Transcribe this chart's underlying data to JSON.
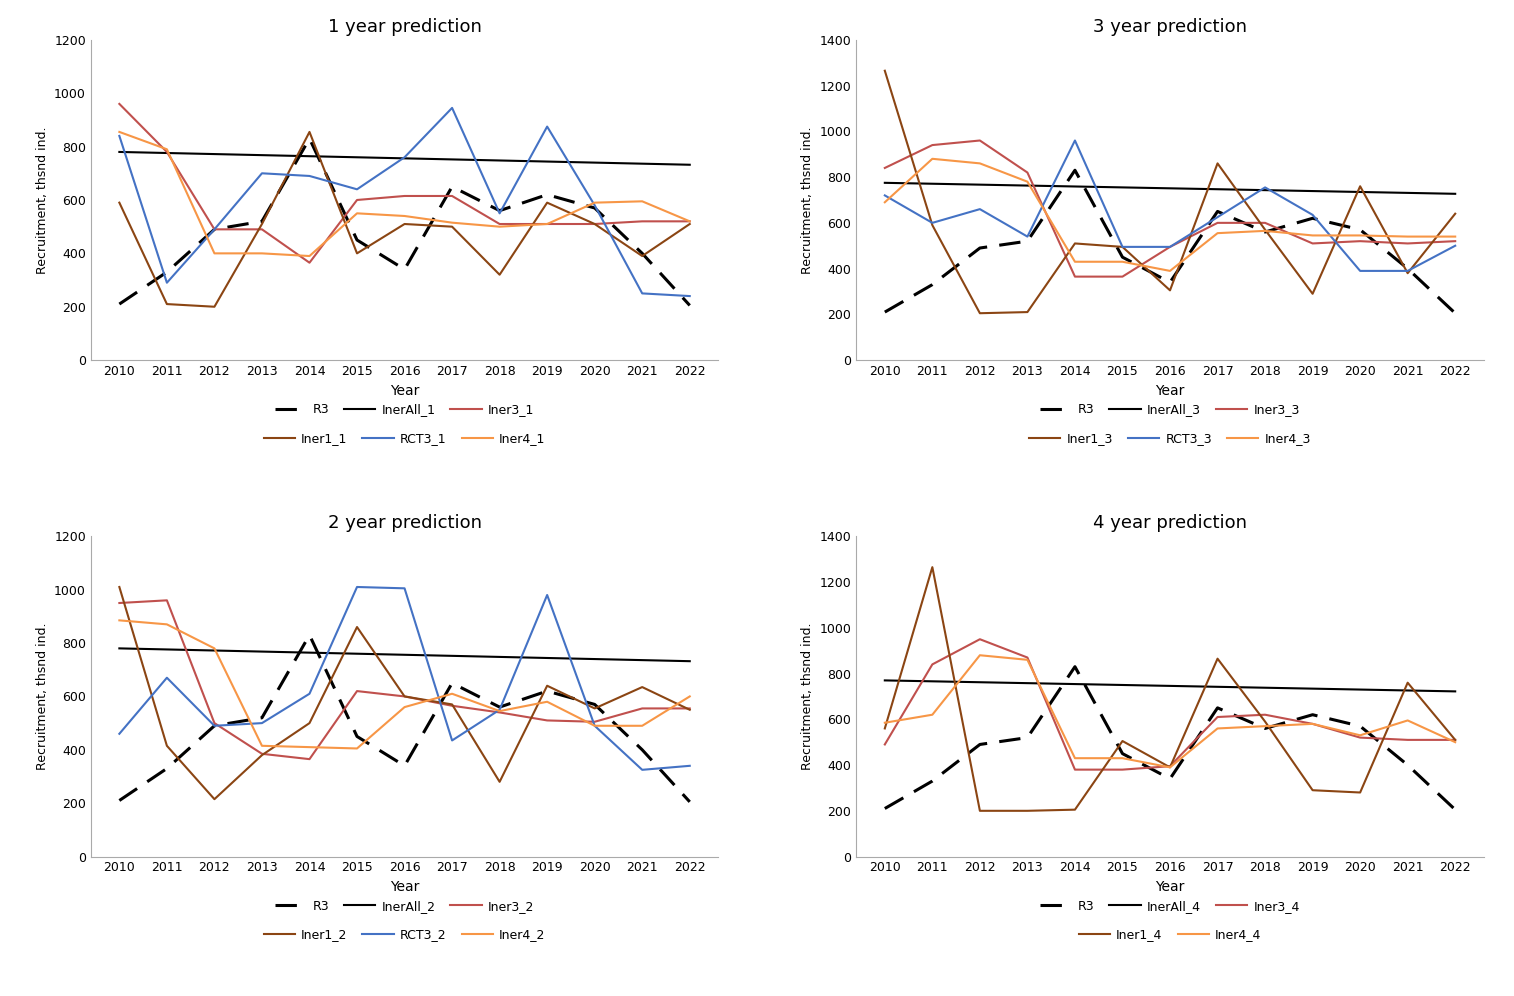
{
  "years": [
    2010,
    2011,
    2012,
    2013,
    2014,
    2015,
    2016,
    2017,
    2018,
    2019,
    2020,
    2021,
    2022
  ],
  "R3": [
    210,
    330,
    490,
    520,
    830,
    450,
    340,
    650,
    560,
    620,
    570,
    400,
    205
  ],
  "InerAll_1": [
    780,
    776,
    772,
    768,
    764,
    760,
    756,
    752,
    748,
    744,
    740,
    736,
    732
  ],
  "Iner3_1": [
    960,
    780,
    490,
    490,
    365,
    600,
    615,
    615,
    510,
    510,
    510,
    520,
    520
  ],
  "Iner1_1": [
    590,
    210,
    200,
    510,
    855,
    400,
    510,
    500,
    320,
    590,
    510,
    390,
    510
  ],
  "RCT3_1": [
    840,
    290,
    490,
    700,
    690,
    640,
    760,
    945,
    550,
    875,
    580,
    250,
    240
  ],
  "Iner4_1": [
    855,
    790,
    400,
    400,
    390,
    550,
    540,
    515,
    500,
    510,
    590,
    595,
    520
  ],
  "InerAll_3": [
    775,
    771,
    767,
    763,
    759,
    755,
    751,
    747,
    743,
    739,
    735,
    731,
    727
  ],
  "Iner3_3": [
    840,
    940,
    960,
    820,
    365,
    365,
    495,
    600,
    600,
    510,
    520,
    510,
    520
  ],
  "Iner1_3": [
    1265,
    590,
    205,
    210,
    510,
    495,
    305,
    860,
    570,
    290,
    760,
    380,
    640
  ],
  "RCT3_3": [
    720,
    600,
    660,
    540,
    960,
    495,
    495,
    625,
    755,
    635,
    390,
    390,
    500
  ],
  "Iner4_3": [
    690,
    880,
    860,
    780,
    430,
    430,
    390,
    555,
    565,
    545,
    545,
    540,
    540
  ],
  "InerAll_2": [
    780,
    776,
    772,
    768,
    764,
    760,
    756,
    752,
    748,
    744,
    740,
    736,
    732
  ],
  "Iner3_2": [
    950,
    960,
    500,
    385,
    365,
    620,
    600,
    565,
    540,
    510,
    505,
    555,
    555
  ],
  "Iner1_2": [
    1010,
    415,
    215,
    380,
    500,
    860,
    600,
    570,
    280,
    640,
    555,
    635,
    550
  ],
  "RCT3_2": [
    460,
    670,
    490,
    500,
    610,
    1010,
    1005,
    435,
    550,
    980,
    490,
    325,
    340
  ],
  "Iner4_2": [
    885,
    870,
    780,
    415,
    410,
    405,
    560,
    610,
    545,
    580,
    490,
    490,
    600
  ],
  "InerAll_4": [
    770,
    766,
    762,
    758,
    754,
    750,
    746,
    742,
    738,
    734,
    730,
    726,
    722
  ],
  "Iner3_4": [
    490,
    840,
    950,
    870,
    380,
    380,
    395,
    610,
    620,
    580,
    520,
    510,
    510
  ],
  "Iner1_4": [
    560,
    1265,
    200,
    200,
    205,
    505,
    390,
    865,
    590,
    290,
    280,
    760,
    510
  ],
  "Iner4_4": [
    585,
    620,
    880,
    860,
    430,
    430,
    390,
    560,
    570,
    580,
    530,
    595,
    500
  ],
  "color_R3": "#000000",
  "color_InerAll": "#000000",
  "color_Iner3": "#c0504d",
  "color_Iner1": "#8b4513",
  "color_RCT3": "#4472c4",
  "color_Iner4": "#f79646",
  "bg_color": "#ffffff",
  "plot_bg": "#ffffff"
}
